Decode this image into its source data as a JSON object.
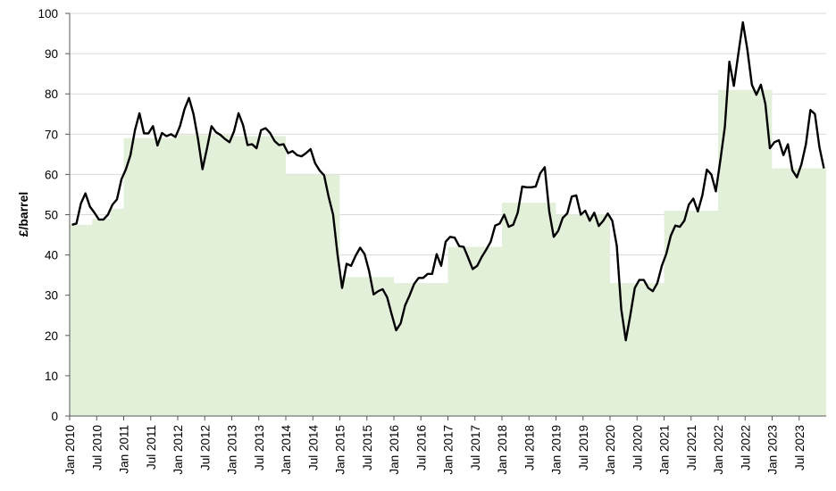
{
  "chart_data": {
    "type": "line",
    "title": "",
    "xlabel": "",
    "ylabel": "£/barrel",
    "ylim": [
      0,
      100
    ],
    "yticks": [
      0,
      10,
      20,
      30,
      40,
      50,
      60,
      70,
      80,
      90,
      100
    ],
    "xlim": [
      "Jan 2010",
      "Dec 2023"
    ],
    "xtick_labels": [
      "Jan 2010",
      "Jul 2010",
      "Jan 2011",
      "Jul 2011",
      "Jan 2012",
      "Jul 2012",
      "Jan 2013",
      "Jul 2013",
      "Jan 2014",
      "Jul 2014",
      "Jan 2015",
      "Jul 2015",
      "Jan 2016",
      "Jul 2016",
      "Jan 2017",
      "Jul 2017",
      "Jan 2018",
      "Jul 2018",
      "Jan 2019",
      "Jul 2019",
      "Jan 2020",
      "Jul 2020",
      "Jan 2021",
      "Jul 2021",
      "Jan 2022",
      "Jul 2022",
      "Jan 2023",
      "Jul 2023"
    ],
    "grid": "horizontal",
    "colors": {
      "line": "#000000",
      "area": "#e2efd9",
      "grid": "#d9d9d9",
      "axis": "#595959"
    },
    "series": [
      {
        "kind": "step-area",
        "x": [
          "Jan 2010",
          "Jun 2010",
          "Oct 2010",
          "Nov 2010",
          "Jan 2011",
          "Jan 2012",
          "Jan 2013",
          "Jan 2014",
          "Jan 2015",
          "Jun 2015",
          "Jan 2016",
          "Jul 2016",
          "Jan 2017",
          "Jan 2018",
          "Jul 2018",
          "Jan 2019",
          "Jan 2020",
          "Apr 2020",
          "Dec 2020",
          "Jan 2021",
          "Jan 2022",
          "Jan 2023"
        ],
        "values": [
          47.5,
          49,
          51.5,
          51.5,
          69,
          69.8,
          69.5,
          60,
          34.5,
          34.5,
          33,
          33,
          42,
          53,
          53,
          50,
          33,
          33,
          33,
          51,
          81,
          61.5
        ]
      },
      {
        "kind": "line",
        "x": [
          "Jan 2010",
          "Feb 2010",
          "Mar 2010",
          "Apr 2010",
          "May 2010",
          "Jun 2010",
          "Jul 2010",
          "Aug 2010",
          "Sep 2010",
          "Oct 2010",
          "Nov 2010",
          "Dec 2010",
          "Jan 2011",
          "Feb 2011",
          "Mar 2011",
          "Apr 2011",
          "May 2011",
          "Jun 2011",
          "Jul 2011",
          "Aug 2011",
          "Sep 2011",
          "Oct 2011",
          "Nov 2011",
          "Dec 2011",
          "Jan 2012",
          "Feb 2012",
          "Mar 2012",
          "Apr 2012",
          "May 2012",
          "Jun 2012",
          "Jul 2012",
          "Aug 2012",
          "Sep 2012",
          "Oct 2012",
          "Nov 2012",
          "Dec 2012",
          "Jan 2013",
          "Feb 2013",
          "Mar 2013",
          "Apr 2013",
          "May 2013",
          "Jun 2013",
          "Jul 2013",
          "Aug 2013",
          "Sep 2013",
          "Oct 2013",
          "Nov 2013",
          "Dec 2013",
          "Jan 2014",
          "Feb 2014",
          "Mar 2014",
          "Apr 2014",
          "May 2014",
          "Jun 2014",
          "Jul 2014",
          "Aug 2014",
          "Sep 2014",
          "Oct 2014",
          "Nov 2014",
          "Dec 2014",
          "Jan 2015",
          "Feb 2015",
          "Mar 2015",
          "Apr 2015",
          "May 2015",
          "Jun 2015",
          "Jul 2015",
          "Aug 2015",
          "Sep 2015",
          "Oct 2015",
          "Nov 2015",
          "Dec 2015",
          "Jan 2016",
          "Feb 2016",
          "Mar 2016",
          "Apr 2016",
          "May 2016",
          "Jun 2016",
          "Jul 2016",
          "Aug 2016",
          "Sep 2016",
          "Oct 2016",
          "Nov 2016",
          "Dec 2016",
          "Jan 2017",
          "Feb 2017",
          "Mar 2017",
          "Apr 2017",
          "May 2017",
          "Jun 2017",
          "Jul 2017",
          "Aug 2017",
          "Sep 2017",
          "Oct 2017",
          "Nov 2017",
          "Dec 2017",
          "Jan 2018",
          "Feb 2018",
          "Mar 2018",
          "Apr 2018",
          "May 2018",
          "Jun 2018",
          "Jul 2018",
          "Aug 2018",
          "Sep 2018",
          "Oct 2018",
          "Nov 2018",
          "Dec 2018",
          "Jan 2019",
          "Feb 2019",
          "Mar 2019",
          "Apr 2019",
          "May 2019",
          "Jun 2019",
          "Jul 2019",
          "Aug 2019",
          "Sep 2019",
          "Oct 2019",
          "Nov 2019",
          "Dec 2019",
          "Jan 2020",
          "Feb 2020",
          "Mar 2020",
          "Apr 2020",
          "May 2020",
          "Jun 2020",
          "Jul 2020",
          "Aug 2020",
          "Sep 2020",
          "Oct 2020",
          "Nov 2020",
          "Dec 2020",
          "Jan 2021",
          "Feb 2021",
          "Mar 2021",
          "Apr 2021",
          "May 2021",
          "Jun 2021",
          "Jul 2021",
          "Aug 2021",
          "Sep 2021",
          "Oct 2021",
          "Nov 2021",
          "Dec 2021",
          "Jan 2022",
          "Feb 2022",
          "Mar 2022",
          "Apr 2022",
          "May 2022",
          "Jun 2022",
          "Jul 2022",
          "Aug 2022",
          "Sep 2022",
          "Oct 2022",
          "Nov 2022",
          "Dec 2022",
          "Jan 2023",
          "Feb 2023",
          "Mar 2023",
          "Apr 2023",
          "May 2023",
          "Jun 2023",
          "Jul 2023",
          "Aug 2023",
          "Sep 2023",
          "Oct 2023",
          "Nov 2023",
          "Dec 2023"
        ],
        "values": [
          47.5,
          47.8,
          52.8,
          55.3,
          52,
          50.5,
          48.8,
          48.8,
          50,
          52.5,
          53.8,
          58.8,
          61.3,
          64.8,
          71,
          75.2,
          70.2,
          70.2,
          72,
          67.2,
          70.3,
          69.5,
          70,
          69.3,
          72,
          76.2,
          79,
          75,
          68.8,
          61.3,
          66.5,
          72,
          70.5,
          69.8,
          68.8,
          68,
          70.7,
          75.2,
          72.3,
          67.3,
          67.5,
          66.5,
          71,
          71.5,
          70.3,
          68.3,
          67.3,
          67.5,
          65.3,
          65.8,
          64.8,
          64.5,
          65.3,
          66.3,
          62.8,
          61,
          59.8,
          54.5,
          50,
          40,
          31.8,
          37.8,
          37.3,
          39.8,
          41.8,
          40.2,
          36,
          30.2,
          31,
          31.5,
          29.5,
          25.3,
          21.3,
          23,
          27.5,
          30,
          32.8,
          34.3,
          34.3,
          35.3,
          35.3,
          40.2,
          37.3,
          43.3,
          44.5,
          44.3,
          42.2,
          42,
          39.3,
          36.5,
          37.3,
          39.5,
          41.3,
          43.3,
          47.3,
          47.8,
          50,
          47,
          47.5,
          50.5,
          57,
          56.8,
          56.8,
          57,
          60.3,
          61.8,
          50.8,
          44.5,
          46,
          49.2,
          50.3,
          54.5,
          54.8,
          50,
          51,
          48.5,
          50.5,
          47.2,
          48.5,
          50.3,
          48.5,
          42.3,
          26.5,
          18.8,
          25,
          31.8,
          33.8,
          33.8,
          31.8,
          31,
          33,
          37.3,
          40.3,
          44.8,
          47.3,
          47,
          48.5,
          52.5,
          54,
          50.8,
          54.8,
          61.2,
          60,
          55.8,
          63.5,
          71.8,
          88,
          82,
          90,
          97.8,
          91,
          82.3,
          79.8,
          82.3,
          77.5,
          66.5,
          68,
          68.5,
          64.8,
          67.5,
          61,
          59.3,
          62.5,
          67.5,
          76,
          75,
          66.8,
          61.5
        ]
      }
    ]
  }
}
